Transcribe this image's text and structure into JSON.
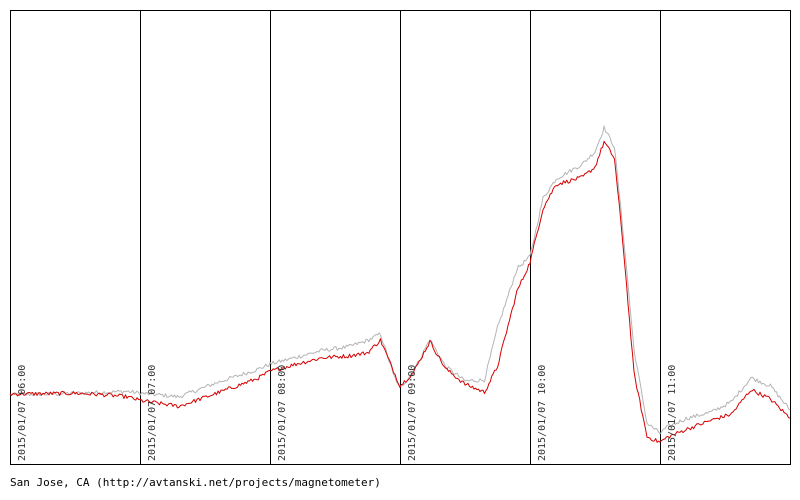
{
  "caption": "San Jose, CA (http://avtanski.net/projects/magnetometer)",
  "chart_data": {
    "type": "line",
    "title": "",
    "xlabel": "",
    "ylabel": "",
    "grid": true,
    "legend": "none",
    "x_tick_labels": [
      "2015/01/07 06:00",
      "2015/01/07 07:00",
      "2015/01/07 08:00",
      "2015/01/07 09:00",
      "2015/01/07 10:00",
      "2015/01/07 11:00"
    ],
    "x_range_hours": [
      6.0,
      12.0
    ],
    "y_range": [
      0,
      100
    ],
    "colors": {
      "red_series": "#d40000",
      "gray_series": "#b4b4b4",
      "grid": "#000000",
      "frame": "#000000"
    },
    "series": [
      {
        "color": "#b4b4b4",
        "x": [
          6.0,
          6.3,
          6.5,
          6.7,
          6.9,
          7.0,
          7.3,
          7.6,
          7.9,
          8.0,
          8.2,
          8.4,
          8.6,
          8.75,
          8.85,
          8.95,
          9.0,
          9.1,
          9.23,
          9.35,
          9.5,
          9.65,
          9.75,
          9.9,
          10.0,
          10.1,
          10.2,
          10.4,
          10.5,
          10.57,
          10.65,
          10.72,
          10.8,
          10.9,
          11.0,
          11.05,
          11.2,
          11.4,
          11.55,
          11.7,
          11.85,
          12.0
        ],
        "values": [
          15.3,
          15.4,
          15.6,
          15.8,
          16.0,
          15.6,
          14.8,
          18.0,
          20.8,
          22.0,
          23.5,
          25.0,
          25.8,
          27.2,
          28.7,
          19.6,
          16.8,
          20.2,
          27.4,
          21.5,
          18.3,
          18.5,
          30.0,
          43.0,
          45.7,
          58.5,
          62.8,
          66.0,
          68.8,
          74.1,
          69.8,
          50.0,
          25.2,
          9.0,
          6.8,
          8.0,
          10.0,
          11.5,
          13.7,
          19.0,
          17.2,
          11.9
        ]
      },
      {
        "color": "#d40000",
        "x": [
          6.0,
          6.3,
          6.5,
          6.7,
          6.9,
          7.0,
          7.3,
          7.6,
          7.9,
          8.0,
          8.2,
          8.4,
          8.6,
          8.75,
          8.85,
          8.95,
          9.0,
          9.1,
          9.23,
          9.35,
          9.5,
          9.65,
          9.75,
          9.9,
          10.0,
          10.1,
          10.2,
          10.4,
          10.5,
          10.57,
          10.65,
          10.72,
          10.8,
          10.9,
          11.0,
          11.05,
          11.2,
          11.4,
          11.55,
          11.7,
          11.85,
          12.0
        ],
        "values": [
          15.4,
          15.5,
          15.6,
          15.3,
          14.8,
          14.0,
          12.7,
          15.7,
          18.8,
          20.4,
          22.0,
          23.4,
          23.8,
          24.5,
          27.3,
          20.5,
          17.2,
          20.0,
          27.0,
          21.0,
          17.6,
          15.8,
          21.5,
          38.0,
          44.4,
          56.3,
          61.6,
          63.1,
          65.4,
          71.0,
          67.3,
          47.0,
          20.0,
          6.0,
          4.8,
          5.8,
          7.6,
          9.7,
          11.0,
          16.4,
          14.3,
          10.1
        ]
      }
    ]
  }
}
